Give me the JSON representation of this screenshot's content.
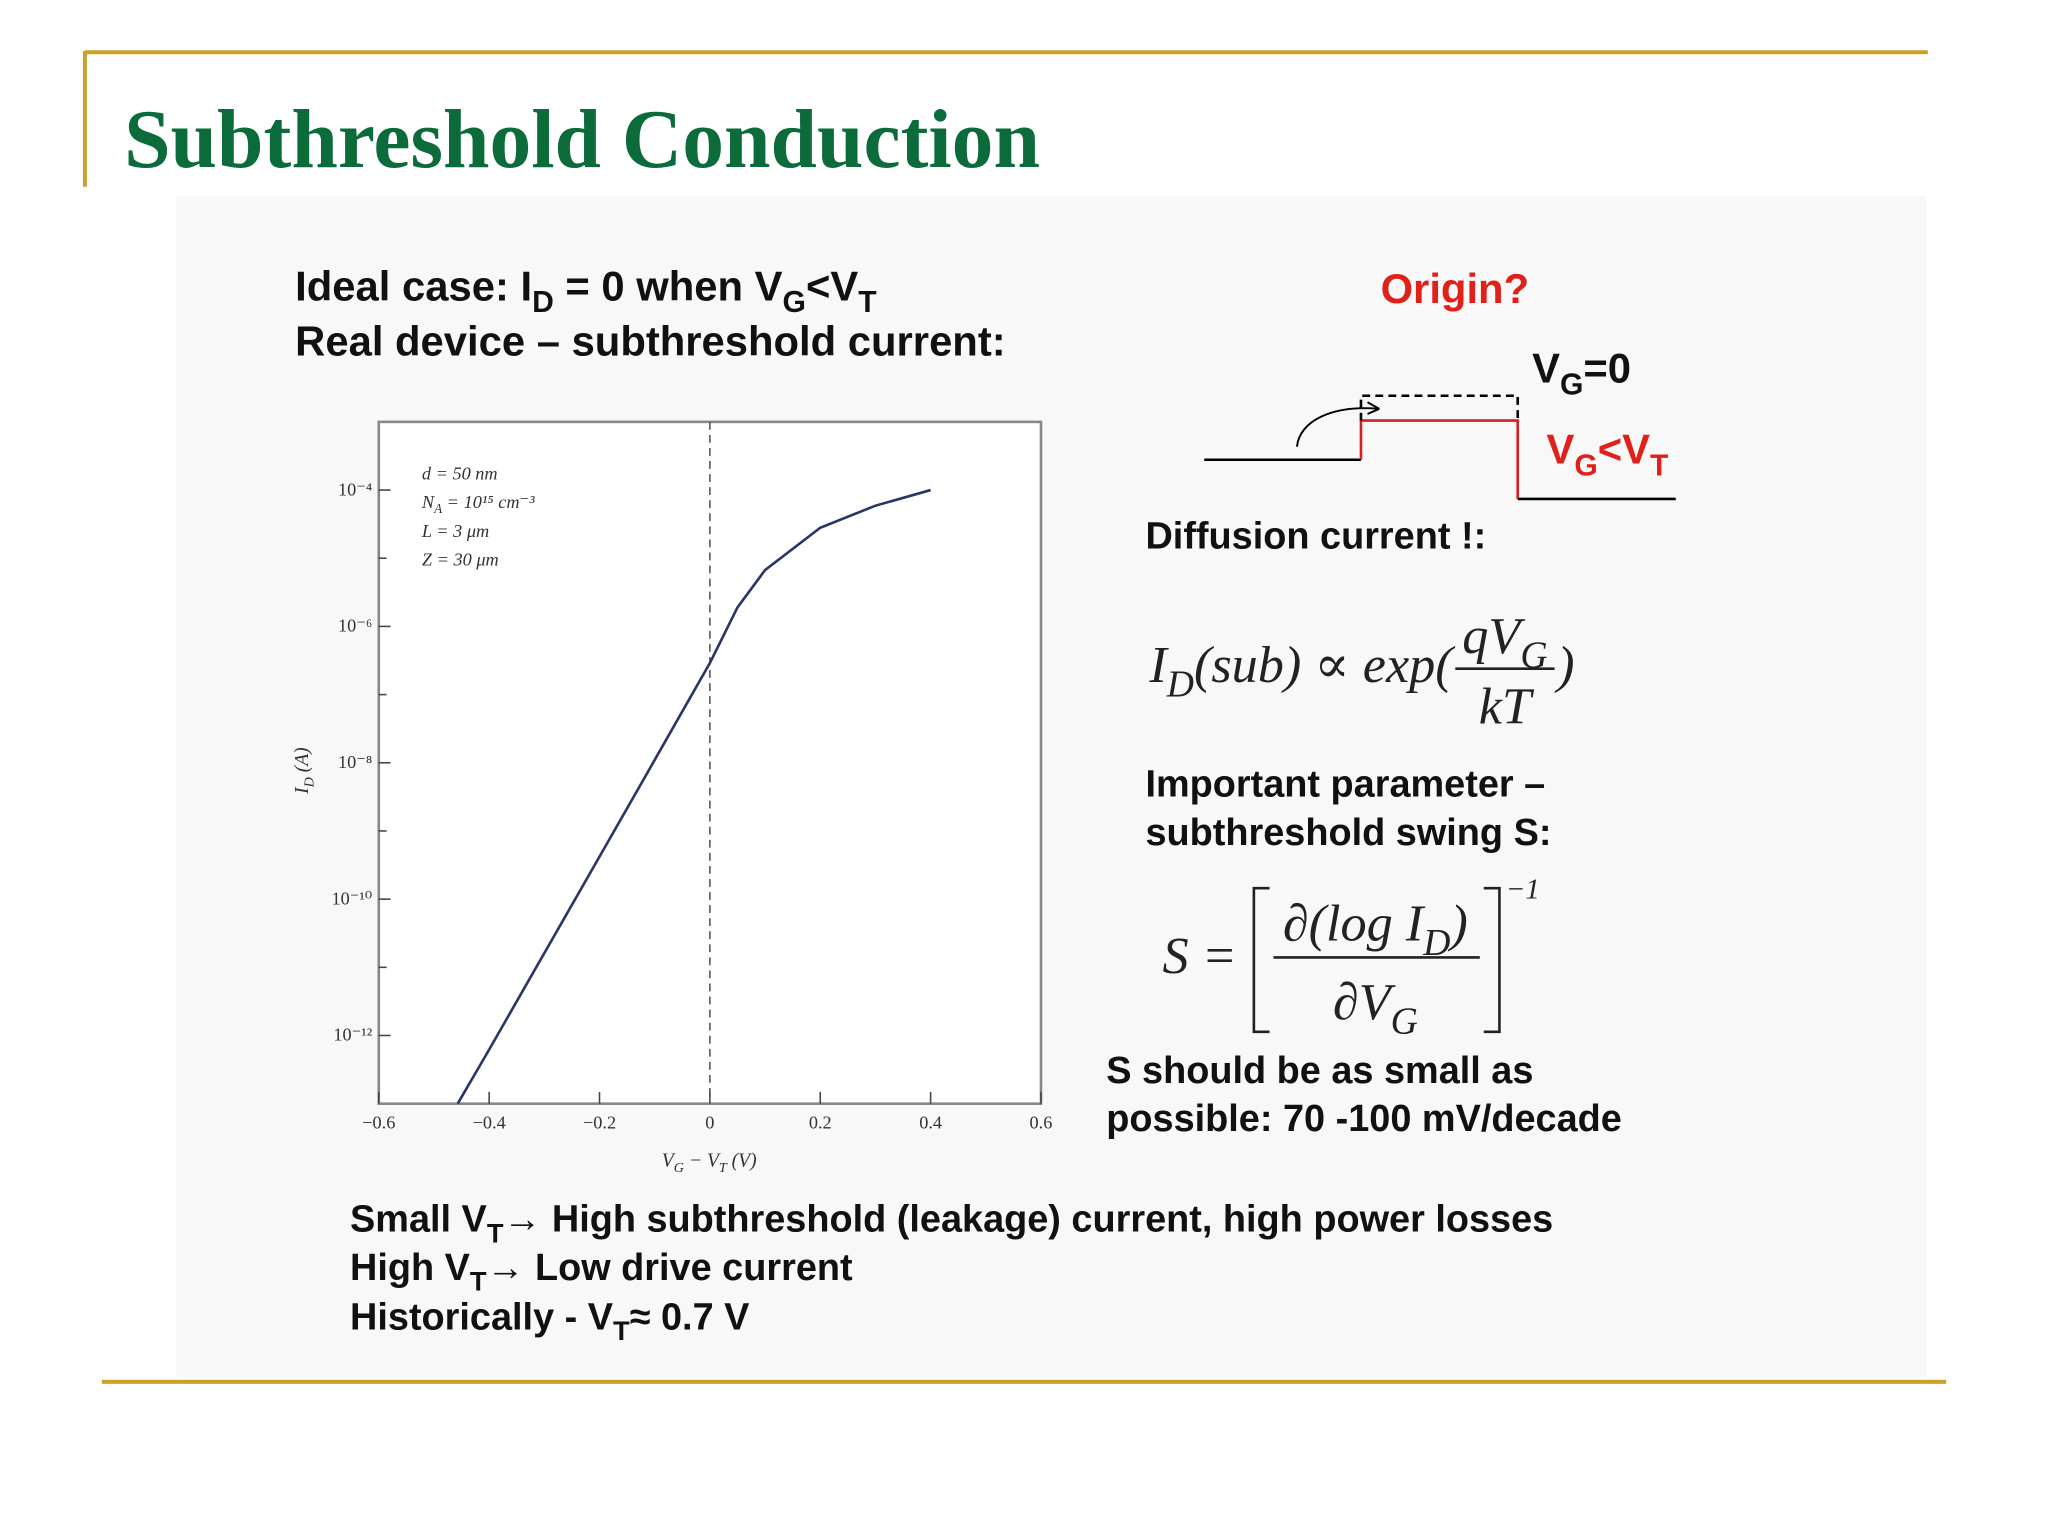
{
  "slide": {
    "title": "Subthreshold Conduction"
  },
  "text": {
    "ideal": [
      "Ideal case: I",
      {
        "sub": "D"
      },
      " = 0 when V",
      {
        "sub": "G"
      },
      "<V",
      {
        "sub": "T"
      }
    ],
    "real": [
      "Real device – subthreshold current:"
    ],
    "origin": [
      "Origin?"
    ],
    "vg0": [
      "V",
      {
        "sub": "G"
      },
      "=0"
    ],
    "vglt": [
      "V",
      {
        "sub": "G"
      },
      "<V",
      {
        "sub": "T"
      }
    ],
    "diffusion": [
      "Diffusion current !:"
    ],
    "important": [
      "Important parameter –"
    ],
    "swing": [
      "subthreshold swing S:"
    ],
    "small1": [
      "S should be as small as"
    ],
    "small2": [
      "possible: 70 -100 mV/decade"
    ],
    "bottom1": [
      "Small V",
      {
        "sub": "T"
      },
      "→ High subthreshold (leakage) current, high power losses"
    ],
    "bottom2": [
      "High V",
      {
        "sub": "T"
      },
      "→ Low drive current"
    ],
    "bottom3": [
      "Historically - V",
      {
        "sub": "T"
      },
      "≈ 0.7 V"
    ]
  },
  "formulas": {
    "current": {
      "lhs": [
        "I",
        {
          "sub": "D"
        },
        "(sub) ∝ exp("
      ],
      "num": [
        "qV",
        {
          "sub": "G"
        }
      ],
      "den": [
        "kT"
      ],
      "close": [
        ")"
      ]
    },
    "swing": {
      "lhs": [
        "S ="
      ],
      "num": [
        "∂(log I",
        {
          "sub": "D"
        },
        ")"
      ],
      "den": [
        "∂V",
        {
          "sub": "G"
        }
      ],
      "exp": [
        "−1"
      ]
    }
  },
  "chart_data": {
    "type": "line",
    "log_y": true,
    "color": "#2a3566",
    "x": [
      -0.457,
      -0.4,
      -0.2,
      -0.1,
      0,
      0.05,
      0.1,
      0.2,
      0.3,
      0.4
    ],
    "values": [
      1e-13,
      6.2e-13,
      4.2e-10,
      1.1e-08,
      2.9e-07,
      1.9e-06,
      6.7e-06,
      2.8e-05,
      5.9e-05,
      0.0001
    ],
    "xlim": [
      -0.6,
      0.6
    ],
    "xticks": [
      {
        "value": -0.6,
        "label": "−0.6"
      },
      {
        "value": -0.4,
        "label": "−0.4"
      },
      {
        "value": -0.2,
        "label": "−0.2"
      },
      0,
      0.2,
      0.4,
      0.6
    ],
    "ylim": [
      1e-13,
      0.001
    ],
    "yticks": [
      {
        "value": 1e-12,
        "label": "10⁻¹²"
      },
      {
        "value": 1e-10,
        "label": "10⁻¹⁰"
      },
      {
        "value": 1e-08,
        "label": "10⁻⁸"
      },
      {
        "value": 1e-06,
        "label": "10⁻⁶"
      },
      {
        "value": 0.0001,
        "label": "10⁻⁴"
      }
    ],
    "yminor": [
      1e-11,
      1e-09,
      1e-07,
      1e-05
    ],
    "vline": 0,
    "xlabel": [
      "V",
      {
        "sub": "G"
      },
      " − V",
      {
        "sub": "T"
      },
      " (V)"
    ],
    "ylabel": [
      "I",
      {
        "sub": "D"
      },
      " (A)"
    ],
    "annotations": [
      [
        "d = 50 nm"
      ],
      [
        "N",
        {
          "sub": "A"
        },
        " = 10¹⁵ cm⁻³"
      ],
      [
        "L = 3 μm"
      ],
      [
        "Z = 30 μm"
      ]
    ]
  }
}
